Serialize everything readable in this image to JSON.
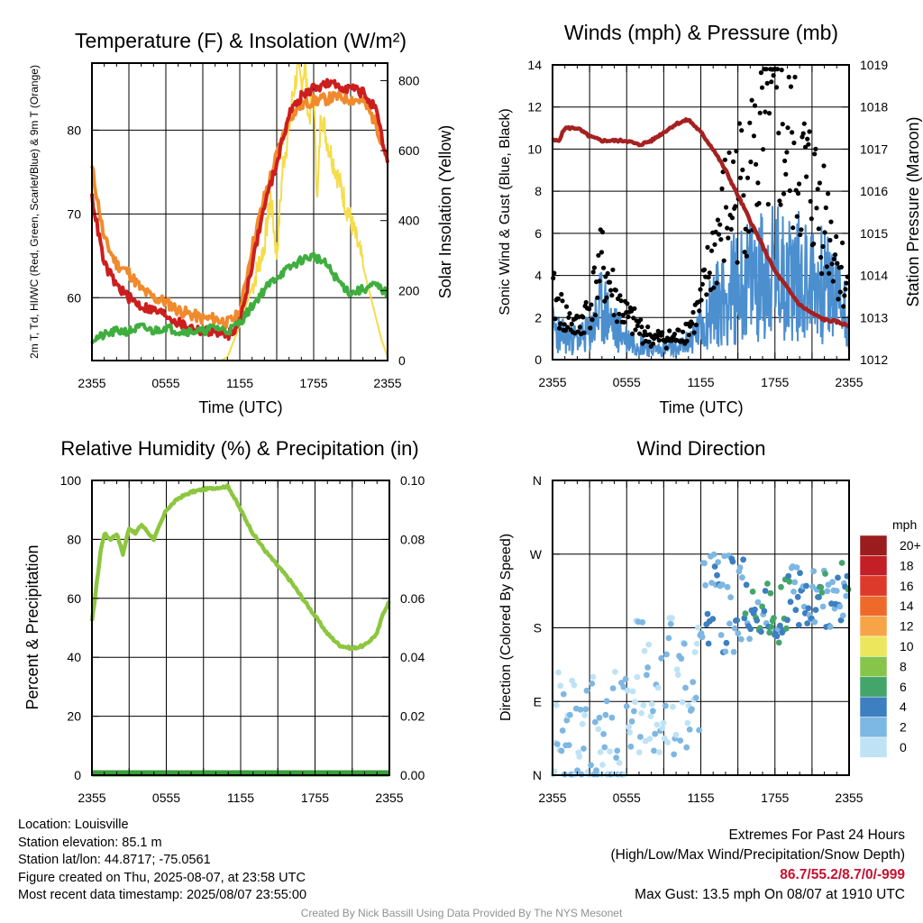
{
  "chart_data": [
    {
      "type": "line",
      "title": "Temperature (F) & Insolation (W/m²)",
      "xlabel": "Time (UTC)",
      "ylabel_left": "2m T, Td, HI/WC (Red, Green, Scarlet/Blue) & 9m T (Orange)",
      "ylabel_right": "Solar Insolation (Yellow)",
      "x_ticks": [
        "2355",
        "0555",
        "1155",
        "1755",
        "2355"
      ],
      "y_left_ticks": [
        60,
        70,
        80
      ],
      "y_left_lim": [
        52.5,
        88
      ],
      "y_right_ticks": [
        0,
        200,
        400,
        600,
        800
      ],
      "y_right_lim": [
        0,
        850
      ],
      "series": [
        {
          "color": "#f08a2c",
          "x": [
            0,
            1,
            2,
            3,
            4,
            5,
            6,
            7,
            8,
            9,
            10,
            11,
            12,
            13,
            14,
            15,
            16,
            17,
            18,
            19,
            20,
            21,
            22,
            23,
            24
          ],
          "values": [
            75.5,
            67,
            64,
            63,
            61,
            60,
            59.5,
            58.5,
            58,
            57.5,
            57.5,
            57,
            58,
            66,
            72,
            77,
            81.5,
            83,
            83.5,
            83.7,
            84,
            83.7,
            83.5,
            81,
            76.5
          ]
        },
        {
          "color": "#cc1e1e",
          "x": [
            0,
            1,
            2,
            3,
            4,
            5,
            6,
            7,
            8,
            9,
            10,
            11,
            12,
            13,
            14,
            15,
            16,
            17,
            18,
            19,
            20,
            21,
            22,
            23,
            24
          ],
          "values": [
            72,
            64,
            61.5,
            60,
            59,
            58.5,
            58,
            57,
            56.5,
            56,
            56,
            55.5,
            57,
            64,
            71,
            76,
            82,
            84,
            85,
            85.5,
            85.3,
            85,
            84.5,
            82.5,
            76
          ]
        },
        {
          "color": "#3fae3f",
          "x": [
            0,
            1,
            2,
            3,
            4,
            5,
            6,
            7,
            8,
            9,
            10,
            11,
            12,
            13,
            14,
            15,
            16,
            17,
            18,
            19,
            20,
            21,
            22,
            23,
            24
          ],
          "values": [
            55,
            55.5,
            56,
            56,
            56.5,
            56,
            56.5,
            56,
            56,
            56,
            56.5,
            56,
            57,
            59,
            61,
            62.5,
            63.5,
            64.5,
            65,
            64,
            62,
            60.5,
            61,
            61.5,
            60.5
          ]
        }
      ],
      "insolation": {
        "color": "#f5dc4a",
        "x": [
          0,
          6,
          9,
          10.5,
          11,
          12,
          13,
          14,
          14.5,
          15,
          15.5,
          16,
          16.3,
          16.7,
          17,
          17.3,
          17.6,
          18,
          18.3,
          18.6,
          19,
          19.5,
          20,
          20.5,
          21,
          21.5,
          22,
          22.5,
          23,
          23.5,
          24
        ],
        "values": [
          0,
          0,
          0,
          0,
          10,
          100,
          210,
          330,
          470,
          300,
          560,
          660,
          760,
          830,
          790,
          850,
          690,
          760,
          450,
          720,
          640,
          580,
          520,
          460,
          400,
          340,
          270,
          200,
          130,
          60,
          10
        ]
      }
    },
    {
      "type": "line",
      "title": "Winds (mph) & Pressure (mb)",
      "xlabel": "Time (UTC)",
      "ylabel_left": "Sonic Wind & Gust (Blue, Black)",
      "ylabel_right": "Station Pressure (Maroon)",
      "x_ticks": [
        "2355",
        "0555",
        "1155",
        "1755",
        "2355"
      ],
      "y_left_ticks": [
        0,
        2,
        4,
        6,
        8,
        10,
        12,
        14
      ],
      "y_left_lim": [
        0,
        14
      ],
      "y_right_ticks": [
        1012,
        1013,
        1014,
        1015,
        1016,
        1017,
        1018,
        1019
      ],
      "y_right_lim": [
        1012,
        1019
      ],
      "pressure": {
        "color": "#a52121",
        "x": [
          0,
          0.5,
          1,
          2,
          3,
          4,
          5,
          6,
          7,
          8,
          9,
          10,
          11,
          12,
          13,
          14,
          15,
          16,
          17,
          18,
          19,
          20,
          21,
          22,
          23,
          24
        ],
        "values": [
          1017.2,
          1017.2,
          1017.5,
          1017.5,
          1017.3,
          1017.2,
          1017.2,
          1017.2,
          1017.1,
          1017.2,
          1017.4,
          1017.6,
          1017.7,
          1017.4,
          1017.0,
          1016.5,
          1015.9,
          1015.3,
          1014.7,
          1014.1,
          1013.7,
          1013.3,
          1013.1,
          1012.95,
          1012.9,
          1012.8
        ]
      },
      "wind": {
        "color": "#4c8fcf",
        "x": [
          0,
          1,
          2,
          3,
          4,
          5,
          6,
          7,
          8,
          9,
          10,
          11,
          12,
          13,
          14,
          15,
          16,
          17,
          18,
          19,
          20,
          21,
          22,
          23,
          24
        ],
        "values": [
          1.5,
          1,
          1,
          1.2,
          2.5,
          1.5,
          1,
          0.8,
          0.5,
          0.5,
          0.5,
          0.8,
          1.5,
          2.5,
          3,
          3.5,
          3.8,
          4,
          4.2,
          4,
          4,
          3.8,
          3.5,
          3,
          2
        ]
      },
      "gust": {
        "color": "#000000",
        "x": [
          0,
          1,
          2,
          3,
          4,
          5,
          6,
          7,
          8,
          9,
          10,
          11,
          12,
          13,
          14,
          15,
          16,
          17,
          18,
          19,
          20,
          21,
          22,
          23,
          24
        ],
        "values": [
          3,
          2,
          1.5,
          2.5,
          4.5,
          3,
          2,
          1.5,
          1,
          1,
          1,
          1.5,
          2.5,
          5,
          7,
          8,
          9,
          10,
          11,
          10,
          9,
          8,
          7,
          5,
          3
        ]
      }
    },
    {
      "type": "line",
      "title": "Relative Humidity (%) & Precipitation (in)",
      "xlabel": "",
      "ylabel_left": "Percent & Precipitation",
      "x_ticks": [
        "2355",
        "0555",
        "1155",
        "1755",
        "2355"
      ],
      "y_left_ticks": [
        0,
        20,
        40,
        60,
        80,
        100
      ],
      "y_left_lim": [
        0,
        100
      ],
      "y_right_ticks": [
        "0.00",
        "0.02",
        "0.04",
        "0.06",
        "0.08",
        "0.10"
      ],
      "y_right_lim": [
        0,
        0.1
      ],
      "series": [
        {
          "color": "#8cc63f",
          "x": [
            0,
            0.3,
            0.7,
            1,
            1.5,
            2,
            2.5,
            3,
            3.5,
            4,
            5,
            6,
            7,
            8,
            9,
            10,
            11,
            12,
            13,
            14,
            15,
            16,
            17,
            18,
            19,
            20,
            21,
            22,
            23,
            23.5,
            24
          ],
          "values": [
            52,
            62,
            76,
            82,
            80,
            82,
            75,
            84,
            82,
            85,
            80,
            90,
            94,
            96,
            97,
            97.5,
            98,
            90,
            82,
            76,
            71,
            66,
            60,
            54,
            48,
            44,
            43,
            44,
            48,
            55,
            59
          ]
        },
        {
          "color": "#3a9e3a",
          "x": [
            0,
            24
          ],
          "values": [
            0,
            0
          ]
        }
      ]
    },
    {
      "type": "scatter",
      "title": "Wind Direction",
      "xlabel": "",
      "ylabel_left": "Direction (Colored By Speed)",
      "x_ticks": [
        "2355",
        "0555",
        "1155",
        "1755",
        "2355"
      ],
      "y_ticks": [
        "N",
        "E",
        "S",
        "W",
        "N"
      ],
      "y_lim": [
        0,
        360
      ],
      "colorbar": {
        "unit": "mph",
        "labels": [
          "20+",
          "18",
          "16",
          "14",
          "12",
          "10",
          "8",
          "6",
          "4",
          "2",
          "0"
        ],
        "colors": [
          "#9b1c1c",
          "#c21f26",
          "#de3a2b",
          "#ef6a2a",
          "#f7a448",
          "#ece65c",
          "#86c44a",
          "#44a56a",
          "#3d7fc0",
          "#7db7e3",
          "#bfe3f5"
        ]
      }
    }
  ],
  "footer": {
    "location": "Location: Louisville",
    "elevation": "Station elevation: 85.1 m",
    "latlon": "Station lat/lon: 44.8717; -75.0561",
    "created": "Figure created on Thu, 2025-08-07, at 23:58 UTC",
    "recent": "Most recent data timestamp: 2025/08/07 23:55:00",
    "extremes_title": "Extremes For Past 24 Hours",
    "extremes_sub": "(High/Low/Max Wind/Precipitation/Snow Depth)",
    "extremes_values": "86.7/55.2/8.7/0/-999",
    "max_gust": "Max Gust: 13.5 mph On 08/07 at 1910 UTC",
    "credit": "Created By Nick Bassill Using Data Provided By The NYS Mesonet"
  }
}
